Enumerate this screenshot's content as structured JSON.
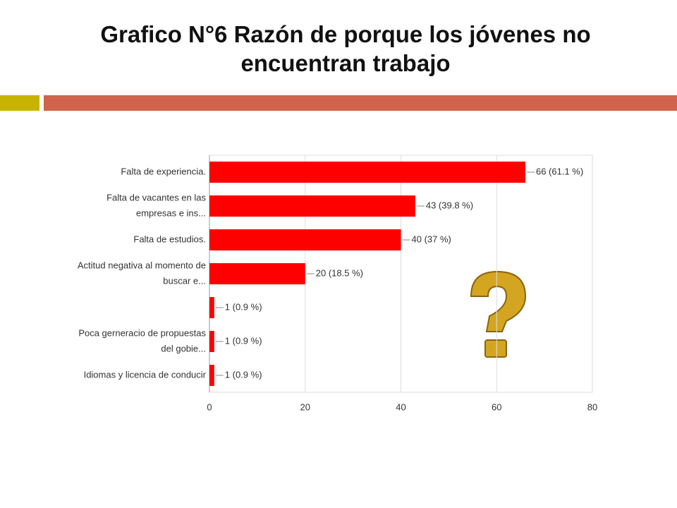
{
  "chart_data": {
    "type": "bar",
    "orientation": "horizontal",
    "title": "Grafico N°6 Razón de porque los jóvenes no encuentran trabajo",
    "categories": [
      [
        "Falta de experiencia."
      ],
      [
        "Falta de vacantes en las",
        "empresas e ins..."
      ],
      [
        "Falta de estudios."
      ],
      [
        "Actitud negativa al momento de",
        "buscar e..."
      ],
      null,
      [
        "Poca gerneracio de propuestas",
        "del gobie..."
      ],
      [
        "Idiomas y licencia de conducir"
      ]
    ],
    "values": [
      66,
      43,
      40,
      20,
      1,
      1,
      1
    ],
    "value_labels": [
      "66 (61.1 %)",
      "43 (39.8 %)",
      "40 (37 %)",
      "20 (18.5 %)",
      "1 (0.9 %)",
      "1 (0.9 %)",
      "1 (0.9 %)"
    ],
    "color": "#ff0000",
    "xlim": [
      0,
      80
    ],
    "xticks": [
      0,
      20,
      40,
      60,
      80
    ],
    "grid": true
  }
}
